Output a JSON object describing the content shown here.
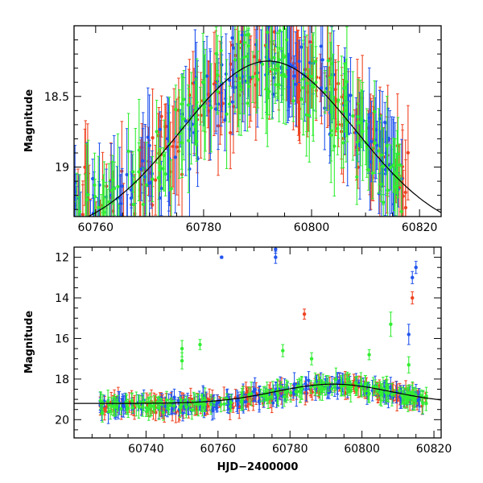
{
  "chart_data": [
    {
      "type": "scatter",
      "panel": "top",
      "ylabel": "Magnitude",
      "xlim": [
        60756,
        60824
      ],
      "ylim": [
        19.35,
        18.0
      ],
      "y_inverted": true,
      "xticks": [
        60760,
        60780,
        60800,
        60820
      ],
      "yticks": [
        18.5,
        19
      ],
      "ytick_labels": [
        "18.5",
        "19"
      ],
      "series": [
        {
          "color": "#ee4422",
          "marker": "dot-with-errorbar",
          "x_range": [
            60756,
            60818
          ],
          "error_typical": 0.25
        },
        {
          "color": "#2255ee",
          "marker": "dot-with-errorbar",
          "x_range": [
            60756,
            60817
          ],
          "error_typical": 0.25
        },
        {
          "color": "#33ee33",
          "marker": "dot-with-errorbar",
          "x_range": [
            60756,
            60817
          ],
          "error_typical": 0.3
        }
      ],
      "model_curve": {
        "color": "#000000",
        "peak_x": 60792,
        "peak_y": 18.25,
        "baseline_y": 19.5,
        "width_days": 34
      }
    },
    {
      "type": "scatter",
      "panel": "bottom",
      "xlabel": "HJD−2400000",
      "ylabel": "Magnitude",
      "xlim": [
        60720,
        60822
      ],
      "ylim": [
        20.9,
        11.5
      ],
      "y_inverted": true,
      "xticks": [
        60740,
        60760,
        60780,
        60800,
        60820
      ],
      "yticks": [
        12,
        14,
        16,
        18,
        20
      ],
      "ytick_labels": [
        "12",
        "14",
        "16",
        "18",
        "20"
      ],
      "series": [
        {
          "color": "#ee4422",
          "marker": "dot-with-errorbar",
          "x_range": [
            60727,
            60818
          ],
          "y_range": [
            18.2,
            20.3
          ]
        },
        {
          "color": "#2255ee",
          "marker": "dot-with-errorbar",
          "x_range": [
            60727,
            60818
          ],
          "y_range": [
            18.0,
            20.6
          ]
        },
        {
          "color": "#33ee33",
          "marker": "dot-with-errorbar",
          "x_range": [
            60727,
            60818
          ],
          "y_range": [
            17.8,
            20.3
          ]
        }
      ],
      "outliers": [
        {
          "color": "#2255ee",
          "x": 60761,
          "y": 12.0,
          "err": 0.05
        },
        {
          "color": "#2255ee",
          "x": 60776,
          "y": 12.0,
          "err": 0.3
        },
        {
          "color": "#2255ee",
          "x": 60776,
          "y": 11.6,
          "err": 0.2
        },
        {
          "color": "#ee4422",
          "x": 60784,
          "y": 14.8,
          "err": 0.25
        },
        {
          "color": "#33ee33",
          "x": 60750,
          "y": 16.5,
          "err": 0.4
        },
        {
          "color": "#33ee33",
          "x": 60750,
          "y": 17.1,
          "err": 0.4
        },
        {
          "color": "#33ee33",
          "x": 60755,
          "y": 16.3,
          "err": 0.25
        },
        {
          "color": "#33ee33",
          "x": 60778,
          "y": 16.6,
          "err": 0.3
        },
        {
          "color": "#33ee33",
          "x": 60786,
          "y": 17.0,
          "err": 0.3
        },
        {
          "color": "#33ee33",
          "x": 60802,
          "y": 16.8,
          "err": 0.25
        },
        {
          "color": "#33ee33",
          "x": 60808,
          "y": 15.3,
          "err": 0.6
        },
        {
          "color": "#33ee33",
          "x": 60813,
          "y": 17.3,
          "err": 0.4
        },
        {
          "color": "#2255ee",
          "x": 60813,
          "y": 15.8,
          "err": 0.5
        },
        {
          "color": "#2255ee",
          "x": 60814,
          "y": 13.0,
          "err": 0.3
        },
        {
          "color": "#2255ee",
          "x": 60815,
          "y": 12.5,
          "err": 0.3
        },
        {
          "color": "#ee4422",
          "x": 60814,
          "y": 14.0,
          "err": 0.3
        }
      ],
      "model_curve": {
        "color": "#000000",
        "peak_x": 60792,
        "peak_y": 18.25,
        "baseline_y": 19.2,
        "width_days": 34
      }
    }
  ]
}
